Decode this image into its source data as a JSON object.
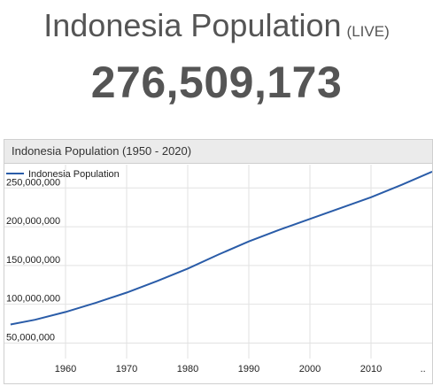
{
  "header": {
    "title": "Indonesia Population",
    "live_label": "(LIVE)",
    "counter": "276,509,173"
  },
  "chart_data": {
    "type": "line",
    "title": "Indonesia Population (1950 - 2020)",
    "legend": "Indonesia Population",
    "legend_position": "top-left",
    "grid": true,
    "xlim": [
      1950,
      2020
    ],
    "ylim": [
      30000000,
      280000000
    ],
    "x_ticks": [
      "1960",
      "1970",
      "1980",
      "1990",
      "2000",
      "2010",
      ".."
    ],
    "y_ticks": [
      "50,000,000",
      "100,000,000",
      "150,000,000",
      "200,000,000",
      "250,000,000"
    ],
    "line_color": "#2a5ca8",
    "series": [
      {
        "name": "Indonesia Population",
        "x": [
          1951,
          1955,
          1960,
          1965,
          1970,
          1975,
          1980,
          1985,
          1990,
          1995,
          2000,
          2005,
          2010,
          2015,
          2020
        ],
        "y": [
          74000000,
          80000000,
          90000000,
          102000000,
          115000000,
          130000000,
          146000000,
          164000000,
          181000000,
          196000000,
          210000000,
          224000000,
          238000000,
          254000000,
          271000000
        ]
      }
    ]
  }
}
